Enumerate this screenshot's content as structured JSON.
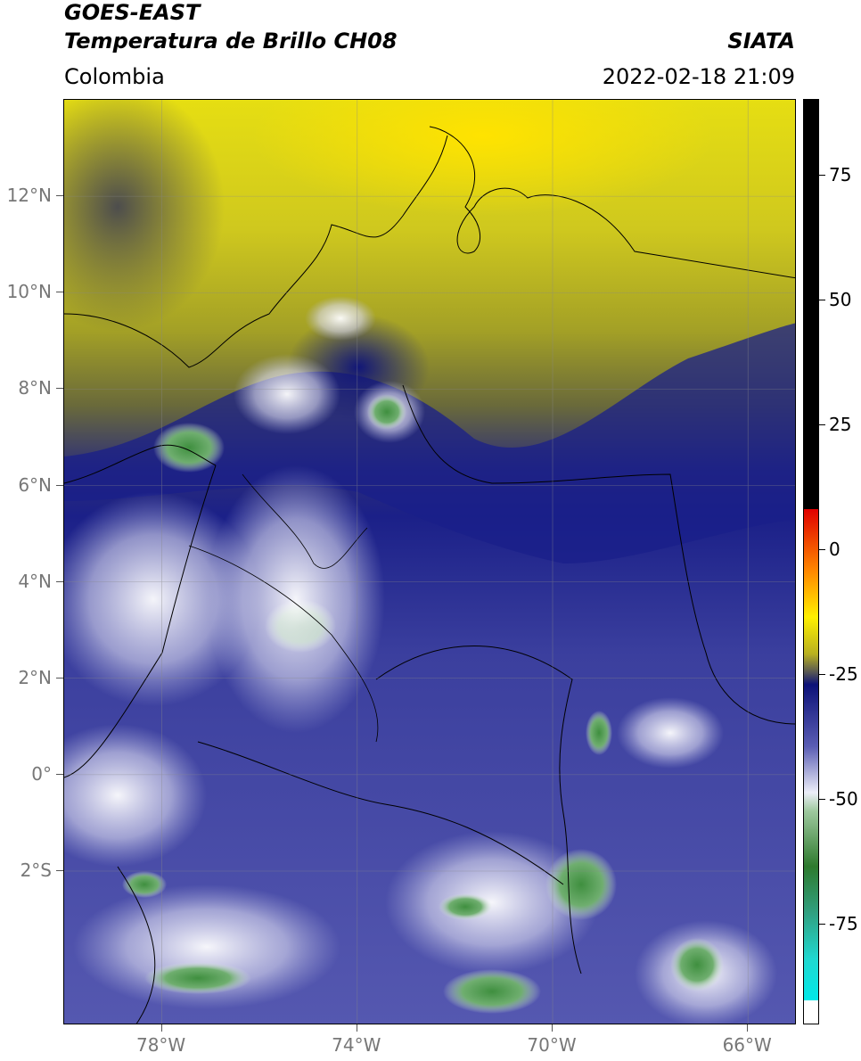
{
  "header": {
    "title_line1": "GOES-EAST",
    "title_line2": "Temperatura de Brillo CH08",
    "region": "Colombia",
    "source": "SIATA",
    "datetime": "2022-02-18 21:09"
  },
  "axes": {
    "lat_labels": [
      "12°N",
      "10°N",
      "8°N",
      "6°N",
      "4°N",
      "2°N",
      "0°",
      "2°S"
    ],
    "lat_values": [
      12,
      10,
      8,
      6,
      4,
      2,
      0,
      -2
    ],
    "lon_labels": [
      "78°W",
      "74°W",
      "70°W",
      "66°W"
    ],
    "lon_values": [
      -78,
      -74,
      -70,
      -66
    ],
    "lat_range": [
      -5.2,
      14.0
    ],
    "lon_range": [
      -80.0,
      -65.0
    ]
  },
  "colorbar": {
    "tick_labels": [
      "75",
      "50",
      "25",
      "0",
      "-25",
      "-50",
      "-75"
    ],
    "tick_values": [
      75,
      50,
      25,
      0,
      -25,
      -50,
      -75
    ],
    "range": [
      -95,
      90
    ]
  },
  "colors": {
    "moist_dark_blue": "#1a1f8a",
    "mid_blue": "#4a4fa8",
    "light_lavender": "#c9cbe8",
    "cold_white": "#f4f4fa",
    "green": "#3e8a3e",
    "teal": "#2fb79a",
    "olive": "#8e8e1f",
    "yellow": "#f0ea00",
    "dark_gray": "#555555"
  }
}
